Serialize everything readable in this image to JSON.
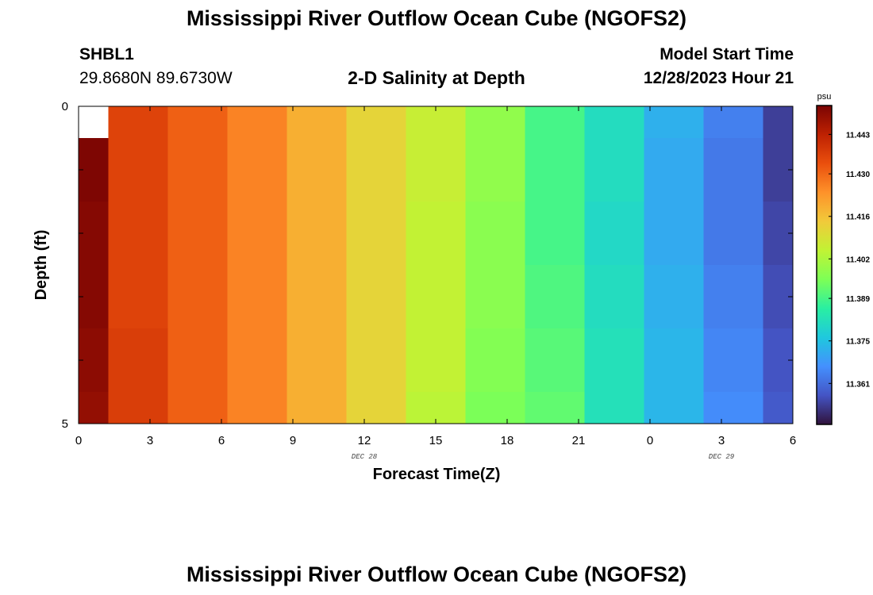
{
  "header": {
    "title": "Mississippi River Outflow Ocean Cube (NGOFS2)",
    "station_id": "SHBL1",
    "station_coords": "29.8680N  89.6730W",
    "plot_subtitle": "2-D Salinity at Depth",
    "model_start_label": "Model Start Time",
    "model_start_value": "12/28/2023 Hour 21"
  },
  "footer": {
    "title": "Mississippi River Outflow Ocean Cube (NGOFS2)"
  },
  "chart_data": {
    "type": "heatmap",
    "title": "2-D Salinity at Depth",
    "xlabel": "Forecast Time(Z)",
    "ylabel": "Depth (ft)",
    "x_tick_labels": [
      "0",
      "3",
      "6",
      "9",
      "12",
      "15",
      "18",
      "21",
      "0",
      "3",
      "6"
    ],
    "x_date_labels": [
      {
        "text": "DEC 28",
        "at_hour": 12
      },
      {
        "text": "DEC 29",
        "at_hour": 27
      }
    ],
    "xlim_hours": [
      0,
      30
    ],
    "y_tick_labels": [
      "0",
      "5"
    ],
    "ylim": [
      0,
      5
    ],
    "column_centers_hours": [
      0,
      2.5,
      5,
      7.5,
      10,
      12.5,
      15,
      17.5,
      20,
      22.5,
      25,
      27.5,
      30
    ],
    "row_count": 10,
    "values": [
      [
        null,
        11.436,
        11.431,
        11.426,
        11.419,
        11.412,
        11.406,
        11.398,
        11.389,
        11.381,
        11.372,
        11.364,
        11.354
      ],
      [
        11.452,
        11.436,
        11.431,
        11.426,
        11.419,
        11.412,
        11.406,
        11.398,
        11.389,
        11.381,
        11.371,
        11.363,
        11.354
      ],
      [
        11.452,
        11.436,
        11.431,
        11.426,
        11.419,
        11.412,
        11.406,
        11.398,
        11.389,
        11.381,
        11.371,
        11.363,
        11.354
      ],
      [
        11.451,
        11.436,
        11.431,
        11.426,
        11.419,
        11.412,
        11.405,
        11.397,
        11.389,
        11.38,
        11.371,
        11.363,
        11.355
      ],
      [
        11.451,
        11.436,
        11.431,
        11.426,
        11.419,
        11.412,
        11.405,
        11.397,
        11.389,
        11.38,
        11.371,
        11.363,
        11.355
      ],
      [
        11.451,
        11.436,
        11.431,
        11.426,
        11.419,
        11.412,
        11.405,
        11.397,
        11.39,
        11.381,
        11.372,
        11.364,
        11.356
      ],
      [
        11.451,
        11.436,
        11.431,
        11.426,
        11.419,
        11.412,
        11.405,
        11.397,
        11.39,
        11.381,
        11.372,
        11.364,
        11.356
      ],
      [
        11.45,
        11.437,
        11.431,
        11.426,
        11.419,
        11.412,
        11.405,
        11.396,
        11.391,
        11.382,
        11.373,
        11.365,
        11.357
      ],
      [
        11.45,
        11.437,
        11.431,
        11.426,
        11.419,
        11.412,
        11.405,
        11.396,
        11.391,
        11.382,
        11.373,
        11.365,
        11.357
      ],
      [
        11.449,
        11.437,
        11.431,
        11.426,
        11.419,
        11.412,
        11.404,
        11.395,
        11.392,
        11.382,
        11.373,
        11.366,
        11.358
      ]
    ],
    "colorbar": {
      "unit": "psu",
      "ticks": [
        "11.443",
        "11.430",
        "11.416",
        "11.402",
        "11.389",
        "11.375",
        "11.361"
      ],
      "tick_values": [
        11.443,
        11.43,
        11.416,
        11.402,
        11.389,
        11.375,
        11.361
      ],
      "range": [
        11.3475,
        11.4525
      ],
      "colors": [
        "#30123b",
        "#4454c4",
        "#4490fe",
        "#1fc8de",
        "#29efa2",
        "#7dff56",
        "#c1f334",
        "#f1ca3a",
        "#fe922a",
        "#ea4f0d",
        "#be2102",
        "#7a0403"
      ]
    }
  }
}
